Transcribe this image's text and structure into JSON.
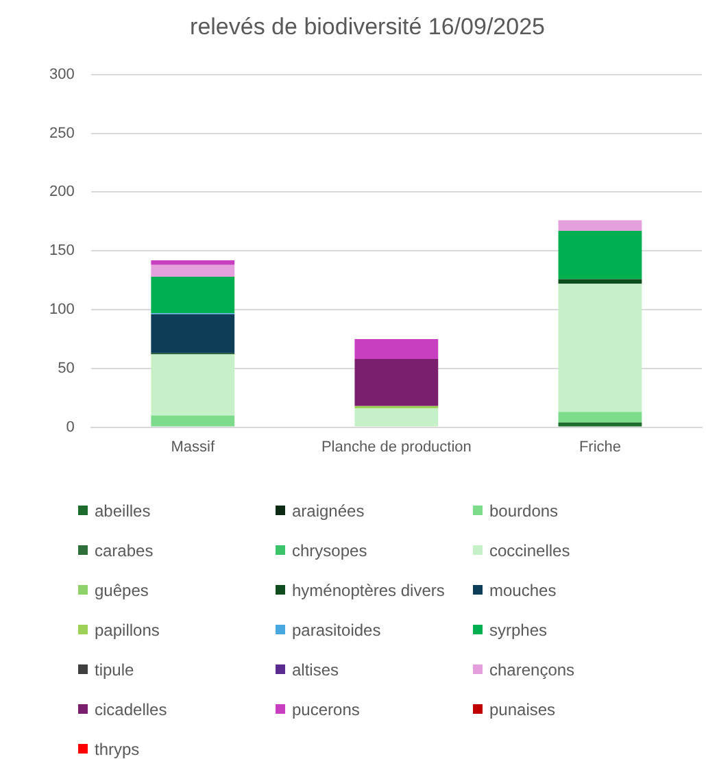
{
  "chart_data": {
    "type": "bar",
    "title": "relevés de biodiversité 16/09/2025",
    "categories": [
      "Massif",
      "Planche de production",
      "Friche"
    ],
    "stacked": true,
    "ylim": [
      0,
      300
    ],
    "yticks": [
      0,
      50,
      100,
      150,
      200,
      250,
      300
    ],
    "grid": "y",
    "legend": "bottom",
    "series": [
      {
        "name": "abeilles",
        "color": "#1e6b2e",
        "values": [
          null,
          null,
          4
        ]
      },
      {
        "name": "araignées",
        "color": "#0d2b14",
        "values": [
          null,
          null,
          null
        ]
      },
      {
        "name": "bourdons",
        "color": "#7ddc8c",
        "values": [
          10,
          null,
          9
        ]
      },
      {
        "name": "carabes",
        "color": "#2f6f3a",
        "values": [
          null,
          null,
          null
        ]
      },
      {
        "name": "chrysopes",
        "color": "#3cc46a",
        "values": [
          null,
          null,
          null
        ]
      },
      {
        "name": "coccinelles",
        "color": "#c6f0c8",
        "values": [
          52,
          16,
          109
        ]
      },
      {
        "name": "guêpes",
        "color": "#8fd16a",
        "values": [
          null,
          null,
          null
        ]
      },
      {
        "name": "hyménoptères divers",
        "color": "#0f4d1e",
        "values": [
          1,
          null,
          4
        ]
      },
      {
        "name": "mouches",
        "color": "#0d3d57",
        "values": [
          33,
          null,
          null
        ]
      },
      {
        "name": "papillons",
        "color": "#9ed157",
        "values": [
          null,
          2,
          null
        ]
      },
      {
        "name": "parasitoides",
        "color": "#4aa8e0",
        "values": [
          1,
          null,
          null
        ]
      },
      {
        "name": "syrphes",
        "color": "#00b050",
        "values": [
          31,
          null,
          41
        ]
      },
      {
        "name": "tipule",
        "color": "#404040",
        "values": [
          null,
          null,
          null
        ]
      },
      {
        "name": "altises",
        "color": "#5b2c8f",
        "values": [
          null,
          null,
          null
        ]
      },
      {
        "name": "charençons",
        "color": "#e3a0dc",
        "values": [
          10,
          null,
          9
        ]
      },
      {
        "name": "cicadelles",
        "color": "#7a1f6e",
        "values": [
          null,
          40,
          null
        ]
      },
      {
        "name": "pucerons",
        "color": "#c83fc0",
        "values": [
          4,
          17,
          null
        ]
      },
      {
        "name": "punaises",
        "color": "#c00000",
        "values": [
          null,
          null,
          null
        ]
      },
      {
        "name": "thryps",
        "color": "#ff0000",
        "values": [
          null,
          null,
          null
        ]
      }
    ]
  }
}
